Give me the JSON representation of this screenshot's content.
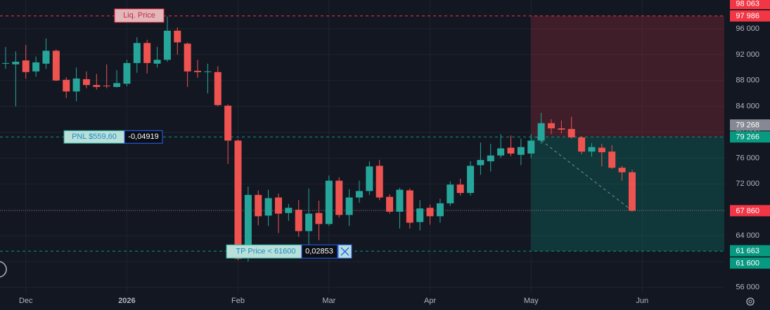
{
  "chart_data": {
    "type": "candlestick",
    "categories": [
      null,
      null,
      "Dec",
      null,
      null,
      null,
      null,
      null,
      null,
      null,
      null,
      null,
      "2026",
      null,
      null,
      null,
      null,
      null,
      null,
      null,
      null,
      null,
      null,
      "Feb",
      null,
      null,
      null,
      null,
      null,
      null,
      null,
      null,
      "Mar",
      null,
      null,
      null,
      null,
      null,
      null,
      null,
      null,
      null,
      "Apr",
      null,
      null,
      null,
      null,
      null,
      null,
      null,
      null,
      null,
      "May",
      null,
      null,
      null,
      null,
      null,
      null,
      null,
      null,
      null,
      null,
      "Jun",
      null,
      null,
      null,
      null,
      null,
      null,
      null,
      null
    ],
    "open": [
      90600,
      90500,
      91100,
      89400,
      90600,
      92600,
      88100,
      86300,
      88200,
      87300,
      87200,
      87000,
      87500,
      90700,
      93800,
      90600,
      91200,
      95700,
      93700,
      89500,
      89300,
      89300,
      84100,
      78700,
      62300,
      70300,
      67100,
      69900,
      67500,
      68000,
      64700,
      67500,
      65800,
      72500,
      67200,
      69900,
      70900,
      74800,
      70000,
      67700,
      71000,
      66100,
      68300,
      67000,
      69000,
      71900,
      70600,
      74900,
      75500,
      76400,
      77600,
      76500,
      76700,
      78700,
      81400,
      80600,
      80500,
      79200,
      77000,
      77600,
      77000,
      74500,
      73800,
      null,
      null,
      null,
      null,
      null,
      null,
      null,
      null,
      null
    ],
    "high": [
      93200,
      92500,
      93500,
      91700,
      94500,
      92800,
      88500,
      90000,
      89400,
      89000,
      90500,
      89600,
      91200,
      94700,
      94300,
      93200,
      97900,
      96200,
      93900,
      91200,
      90600,
      90200,
      84300,
      78900,
      71600,
      71000,
      71100,
      70500,
      68900,
      69500,
      71300,
      69400,
      73300,
      73000,
      71200,
      72500,
      75500,
      75700,
      70400,
      71400,
      71300,
      69500,
      68800,
      69700,
      72400,
      72800,
      75500,
      78400,
      78200,
      79700,
      79500,
      79000,
      79700,
      83000,
      82000,
      81800,
      82400,
      79400,
      78300,
      78200,
      78000,
      74800,
      74200,
      null,
      null,
      null,
      null,
      null,
      null,
      null,
      null,
      null
    ],
    "low": [
      89800,
      84000,
      88300,
      88600,
      89800,
      87900,
      85300,
      84800,
      86800,
      86600,
      86800,
      86900,
      87100,
      89200,
      89100,
      90000,
      90900,
      92000,
      87000,
      88400,
      86000,
      84000,
      75100,
      60200,
      60000,
      65600,
      65500,
      64400,
      66300,
      63800,
      62000,
      63300,
      65500,
      66800,
      65500,
      69100,
      70300,
      69500,
      67400,
      65100,
      65100,
      64800,
      65700,
      66000,
      68600,
      70200,
      70200,
      73400,
      73900,
      76000,
      76300,
      74900,
      76000,
      78200,
      79700,
      79800,
      79000,
      76600,
      76200,
      74700,
      74300,
      72500,
      67700,
      null,
      null,
      null,
      null,
      null,
      null,
      null,
      null,
      null
    ],
    "close": [
      90700,
      90900,
      89300,
      90800,
      92600,
      88000,
      86300,
      88300,
      87300,
      87000,
      87100,
      87600,
      90700,
      93800,
      90700,
      91200,
      95700,
      93900,
      89400,
      89300,
      89400,
      84200,
      78700,
      60400,
      70300,
      67000,
      69800,
      67400,
      68300,
      64700,
      67400,
      65800,
      72500,
      67200,
      69900,
      70900,
      74700,
      69900,
      67700,
      71100,
      66000,
      68200,
      67000,
      69000,
      71900,
      70600,
      74800,
      75700,
      76400,
      77500,
      76700,
      77700,
      78700,
      81400,
      80600,
      80400,
      79200,
      77000,
      77700,
      76900,
      74500,
      73800,
      67860,
      null,
      null,
      null,
      null,
      null,
      null,
      null,
      null,
      null
    ],
    "up_color": "#26a69a",
    "down_color": "#ef5350",
    "ylim": [
      55100,
      100450
    ],
    "yticks": [
      {
        "value": 56000,
        "label": "56 000"
      },
      {
        "value": 60000,
        "label": "60 000"
      },
      {
        "value": 64000,
        "label": "64 000"
      },
      {
        "value": 68000,
        "label": "68 000"
      },
      {
        "value": 72000,
        "label": "72 000"
      },
      {
        "value": 76000,
        "label": "76 000"
      },
      {
        "value": 80000,
        "label": "80 000"
      },
      {
        "value": 84000,
        "label": "84 000"
      },
      {
        "value": 88000,
        "label": "88 000"
      },
      {
        "value": 92000,
        "label": "92 000"
      },
      {
        "value": 96000,
        "label": "96 000"
      }
    ],
    "grid": true,
    "price_labels": [
      {
        "value": 98063,
        "label": "98 063",
        "color": "#f23645"
      },
      {
        "value": 97986,
        "label": "97 986",
        "color": "#f23645",
        "line": "dashed"
      },
      {
        "value": 79268,
        "label": "79 268",
        "color": "#868993"
      },
      {
        "value": 79266,
        "label": "79 266",
        "color": "#089981",
        "line": "dashed"
      },
      {
        "value": 67860,
        "label": "67 860",
        "color": "#f23645",
        "line": "dotted"
      },
      {
        "value": 61663,
        "label": "61 663",
        "color": "#089981"
      },
      {
        "value": 61600,
        "label": "61 600",
        "color": "#089981",
        "line": "dashed"
      }
    ],
    "annotations": {
      "liq": "Liq. Price",
      "pnl": "PNL $559,60",
      "pnl_change": "-0,04919",
      "tp": "TP Price < 61600",
      "tp_change": "0,02853"
    }
  }
}
